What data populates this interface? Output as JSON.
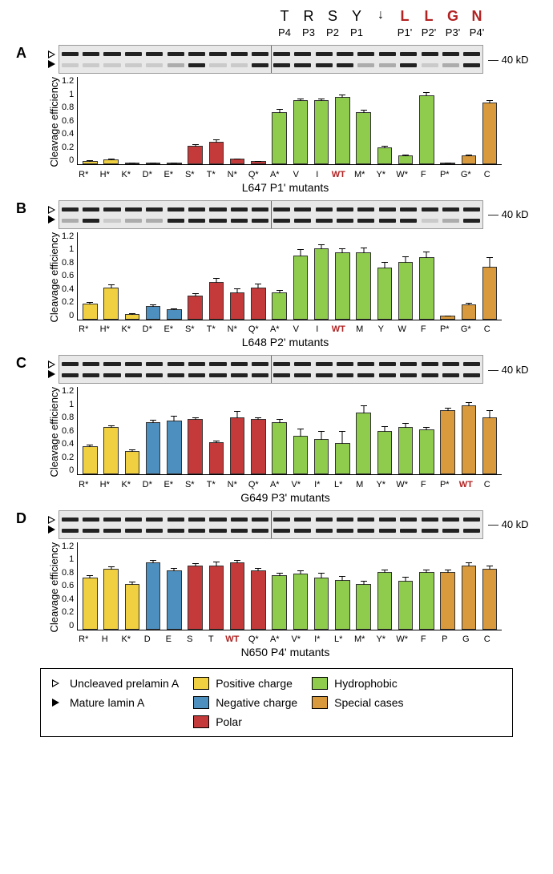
{
  "header": {
    "aa": [
      "T",
      "R",
      "S",
      "Y",
      "↓",
      "L",
      "L",
      "G",
      "N"
    ],
    "aa_red_flags": [
      false,
      false,
      false,
      false,
      false,
      true,
      true,
      true,
      true
    ],
    "positions": [
      "P4",
      "P3",
      "P2",
      "P1",
      "",
      "P1'",
      "P2'",
      "P3'",
      "P4'"
    ]
  },
  "colors": {
    "positive": "#f0d040",
    "negative": "#4d8fbf",
    "polar": "#c43a3a",
    "hydrophobic": "#8fcc4d",
    "special": "#d99a3d",
    "wt_text": "#b22222",
    "bg": "#ffffff",
    "axis": "#000000",
    "gel_bg": "#e8e8e8"
  },
  "chart_cfg": {
    "ymax": 1.3,
    "yticks": [
      "0",
      "0.2",
      "0.4",
      "0.6",
      "0.8",
      "1",
      "1.2"
    ],
    "ylabel": "Cleavage\nefficiency",
    "gel_label": "40 kD",
    "label_fontsize": 13,
    "tick_fontsize": 11,
    "bar_width": 0.7
  },
  "panels": [
    {
      "id": "A",
      "xtitle": "L647 P1' mutants",
      "labels": [
        "R*",
        "H*",
        "K*",
        "D*",
        "E*",
        "S*",
        "T*",
        "N*",
        "Q*",
        "A*",
        "V",
        "I",
        "WT",
        "M*",
        "Y*",
        "W*",
        "F",
        "P*",
        "G*",
        "C"
      ],
      "wt_index": 12,
      "values": [
        0.05,
        0.07,
        0.03,
        0.03,
        0.03,
        0.28,
        0.33,
        0.08,
        0.05,
        0.78,
        0.95,
        0.95,
        1.0,
        0.77,
        0.25,
        0.13,
        1.03,
        0.03,
        0.13,
        0.92
      ],
      "errors": [
        0.02,
        0.02,
        0.01,
        0.01,
        0.01,
        0.03,
        0.05,
        0.02,
        0.01,
        0.05,
        0.04,
        0.04,
        0.05,
        0.05,
        0.04,
        0.03,
        0.06,
        0.01,
        0.03,
        0.05
      ],
      "colors": [
        "positive",
        "positive",
        "positive",
        "negative",
        "negative",
        "polar",
        "polar",
        "polar",
        "polar",
        "hydrophobic",
        "hydrophobic",
        "hydrophobic",
        "hydrophobic",
        "hydrophobic",
        "hydrophobic",
        "hydrophobic",
        "hydrophobic",
        "special",
        "special",
        "special"
      ]
    },
    {
      "id": "B",
      "xtitle": "L648 P2' mutants",
      "labels": [
        "R*",
        "H*",
        "K*",
        "D*",
        "E*",
        "S*",
        "T*",
        "N*",
        "Q*",
        "A*",
        "V",
        "I",
        "WT",
        "M",
        "Y",
        "W",
        "F",
        "P*",
        "G*",
        "C"
      ],
      "wt_index": 12,
      "values": [
        0.23,
        0.47,
        0.08,
        0.2,
        0.15,
        0.35,
        0.55,
        0.4,
        0.47,
        0.4,
        0.95,
        1.05,
        1.0,
        1.0,
        0.77,
        0.85,
        0.92,
        0.05,
        0.22,
        0.78
      ],
      "errors": [
        0.04,
        0.06,
        0.02,
        0.03,
        0.02,
        0.05,
        0.08,
        0.07,
        0.07,
        0.05,
        0.1,
        0.08,
        0.07,
        0.08,
        0.1,
        0.1,
        0.1,
        0.02,
        0.04,
        0.15
      ],
      "colors": [
        "positive",
        "positive",
        "positive",
        "negative",
        "negative",
        "polar",
        "polar",
        "polar",
        "polar",
        "hydrophobic",
        "hydrophobic",
        "hydrophobic",
        "hydrophobic",
        "hydrophobic",
        "hydrophobic",
        "hydrophobic",
        "hydrophobic",
        "special",
        "special",
        "special"
      ]
    },
    {
      "id": "C",
      "xtitle": "G649 P3' mutants",
      "labels": [
        "R*",
        "H*",
        "K*",
        "D*",
        "E*",
        "S*",
        "T*",
        "N*",
        "Q*",
        "A*",
        "V*",
        "I*",
        "L*",
        "M",
        "Y*",
        "W*",
        "F",
        "P*",
        "WT",
        "C"
      ],
      "wt_index": 18,
      "values": [
        0.42,
        0.7,
        0.35,
        0.78,
        0.8,
        0.82,
        0.48,
        0.85,
        0.82,
        0.78,
        0.57,
        0.53,
        0.47,
        0.92,
        0.65,
        0.7,
        0.67,
        0.95,
        1.02,
        0.85
      ],
      "errors": [
        0.03,
        0.04,
        0.03,
        0.04,
        0.08,
        0.04,
        0.03,
        0.1,
        0.04,
        0.05,
        0.12,
        0.12,
        0.18,
        0.12,
        0.08,
        0.08,
        0.05,
        0.05,
        0.06,
        0.12
      ],
      "colors": [
        "positive",
        "positive",
        "positive",
        "negative",
        "negative",
        "polar",
        "polar",
        "polar",
        "polar",
        "hydrophobic",
        "hydrophobic",
        "hydrophobic",
        "hydrophobic",
        "hydrophobic",
        "hydrophobic",
        "hydrophobic",
        "hydrophobic",
        "special",
        "special",
        "special"
      ]
    },
    {
      "id": "D",
      "xtitle": "N650 P4' mutants",
      "labels": [
        "R*",
        "H",
        "K*",
        "D",
        "E",
        "S",
        "T",
        "WT",
        "Q*",
        "A*",
        "V*",
        "I*",
        "L*",
        "M*",
        "Y*",
        "W*",
        "F",
        "P",
        "G",
        "C"
      ],
      "wt_index": 7,
      "values": [
        0.77,
        0.9,
        0.67,
        1.0,
        0.88,
        0.95,
        0.95,
        1.0,
        0.88,
        0.8,
        0.83,
        0.77,
        0.73,
        0.68,
        0.85,
        0.72,
        0.85,
        0.85,
        0.95,
        0.9
      ],
      "errors": [
        0.05,
        0.05,
        0.05,
        0.04,
        0.05,
        0.05,
        0.07,
        0.04,
        0.05,
        0.05,
        0.06,
        0.08,
        0.07,
        0.05,
        0.05,
        0.07,
        0.05,
        0.05,
        0.06,
        0.06
      ],
      "colors": [
        "positive",
        "positive",
        "positive",
        "negative",
        "negative",
        "polar",
        "polar",
        "polar",
        "polar",
        "hydrophobic",
        "hydrophobic",
        "hydrophobic",
        "hydrophobic",
        "hydrophobic",
        "hydrophobic",
        "hydrophobic",
        "hydrophobic",
        "special",
        "special",
        "special"
      ]
    }
  ],
  "legend": {
    "band_labels": [
      "Uncleaved prelamin A",
      "Mature lamin A"
    ],
    "categories": [
      {
        "label": "Positive charge",
        "color": "positive"
      },
      {
        "label": "Negative charge",
        "color": "negative"
      },
      {
        "label": "Polar",
        "color": "polar"
      },
      {
        "label": "Hydrophobic",
        "color": "hydrophobic"
      },
      {
        "label": "Special cases",
        "color": "special"
      }
    ]
  }
}
